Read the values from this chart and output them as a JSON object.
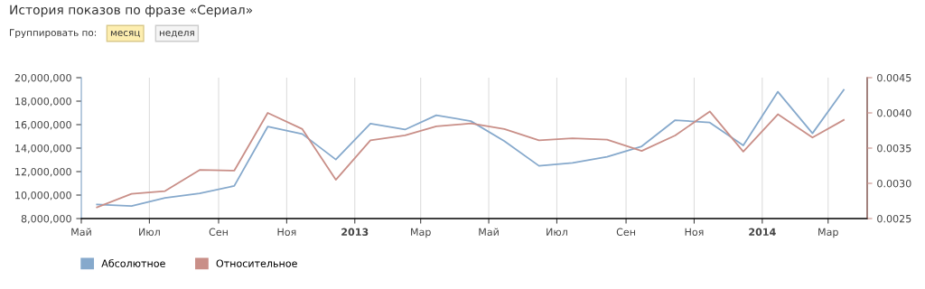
{
  "chart_data": {
    "type": "line",
    "title": "История показов по фразе «Сериал»",
    "annotations": [
      "Группировать по:",
      "месяц",
      "неделя"
    ],
    "x": [
      "2012-05-15",
      "2012-06-15",
      "2012-07-15",
      "2012-08-15",
      "2012-09-15",
      "2012-10-15",
      "2012-11-15",
      "2012-12-15",
      "2013-01-15",
      "2013-02-15",
      "2013-03-15",
      "2013-04-15",
      "2013-05-15",
      "2013-06-15",
      "2013-07-15",
      "2013-08-15",
      "2013-09-15",
      "2013-10-15",
      "2013-11-15",
      "2013-12-15",
      "2014-01-15",
      "2014-02-15",
      "2014-03-15"
    ],
    "series": [
      {
        "name": "Абсолютное",
        "color": "#86a9cc",
        "values": [
          9200000,
          9070000,
          9760000,
          10140000,
          10780000,
          15830000,
          15200000,
          13030000,
          16090000,
          15580000,
          16800000,
          16300000,
          14600000,
          12490000,
          12740000,
          13260000,
          14150000,
          16380000,
          16180000,
          14230000,
          18800000,
          15260000,
          18970000
        ]
      },
      {
        "name": "Относительное",
        "color": "#c98f88",
        "axis": "y2",
        "values": [
          0.00266,
          0.00285,
          0.00289,
          0.00319,
          0.00318,
          0.004,
          0.00377,
          0.00305,
          0.00361,
          0.00368,
          0.00381,
          0.00385,
          0.00377,
          0.00361,
          0.00364,
          0.00362,
          0.00346,
          0.00368,
          0.00402,
          0.00345,
          0.00398,
          0.00365,
          0.0039
        ]
      }
    ],
    "xlim": [
      "2012-05-01",
      "2014-04-05"
    ],
    "xticks": [
      {
        "value": "2012-05-01",
        "label": "Май"
      },
      {
        "value": "2012-07-01",
        "label": "Июл"
      },
      {
        "value": "2012-09-01",
        "label": "Сен"
      },
      {
        "value": "2012-11-01",
        "label": "Ноя"
      },
      {
        "value": "2013-01-01",
        "label": "2013"
      },
      {
        "value": "2013-03-01",
        "label": "Мар"
      },
      {
        "value": "2013-05-01",
        "label": "Май"
      },
      {
        "value": "2013-07-01",
        "label": "Июл"
      },
      {
        "value": "2013-09-01",
        "label": "Сен"
      },
      {
        "value": "2013-11-01",
        "label": "Ноя"
      },
      {
        "value": "2014-01-01",
        "label": "2014"
      },
      {
        "value": "2014-03-01",
        "label": "Мар"
      }
    ],
    "ylim": [
      8000000,
      20000000
    ],
    "yticks": [
      {
        "value": 8000000,
        "label": "8,000,000"
      },
      {
        "value": 10000000,
        "label": "10,000,000"
      },
      {
        "value": 12000000,
        "label": "12,000,000"
      },
      {
        "value": 14000000,
        "label": "14,000,000"
      },
      {
        "value": 16000000,
        "label": "16,000,000"
      },
      {
        "value": 18000000,
        "label": "18,000,000"
      },
      {
        "value": 20000000,
        "label": "20,000,000"
      }
    ],
    "y2lim": [
      0.0025,
      0.0045
    ],
    "y2ticks": [
      {
        "value": 0.0025,
        "label": "0.0025"
      },
      {
        "value": 0.003,
        "label": "0.0030"
      },
      {
        "value": 0.0035,
        "label": "0.0035"
      },
      {
        "value": 0.004,
        "label": "0.0040"
      },
      {
        "value": 0.0045,
        "label": "0.0045"
      }
    ],
    "grid": "x",
    "legend": "bottom left",
    "marker": "none",
    "line_style": "solid"
  }
}
